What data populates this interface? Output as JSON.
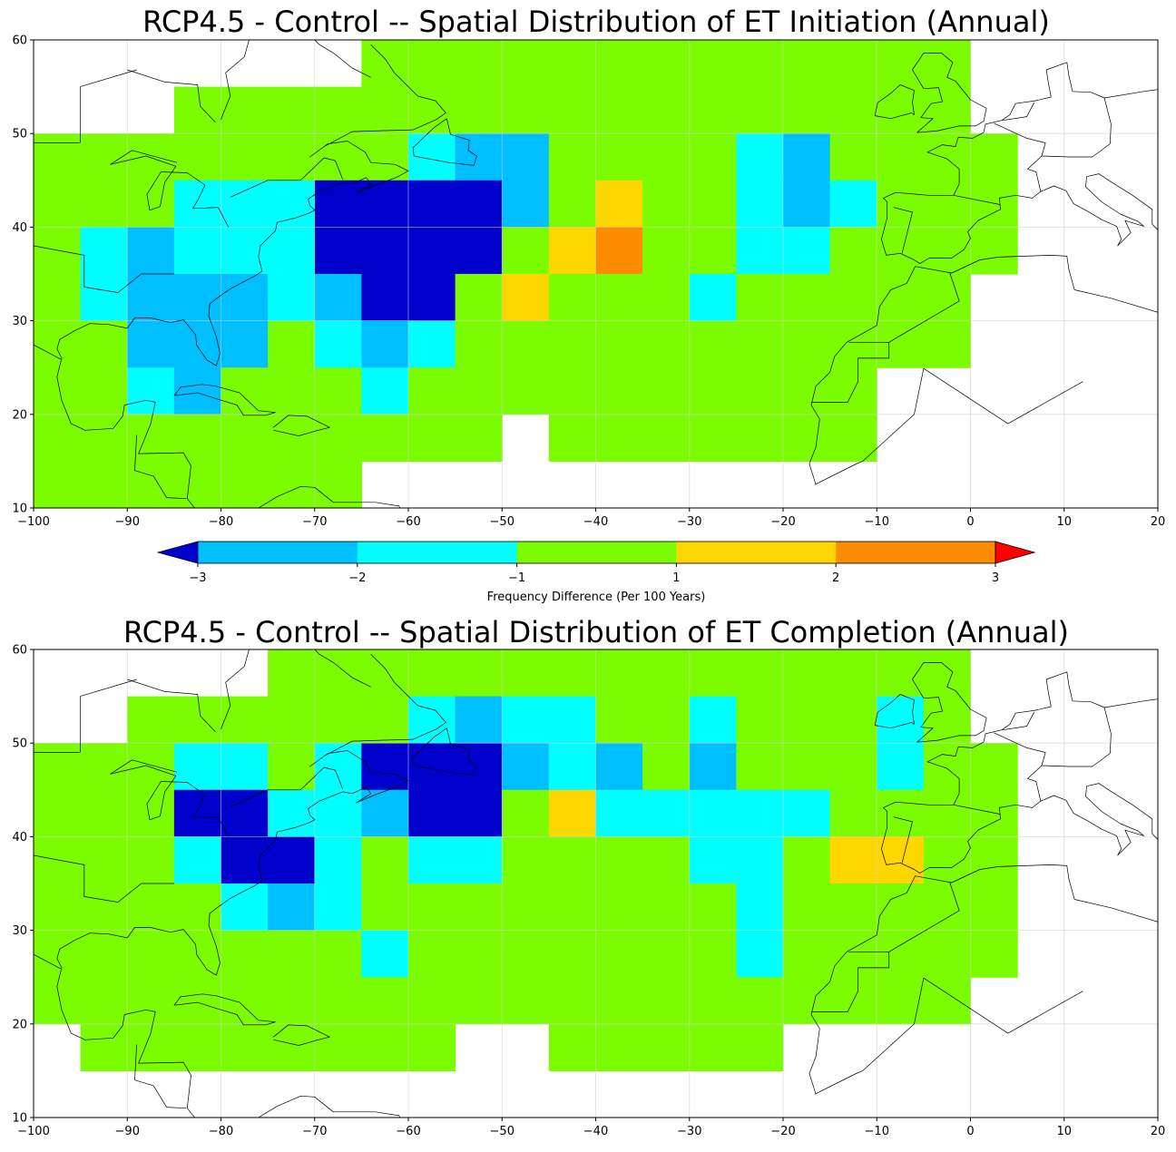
{
  "colors": {
    "bin_lt_-3": "#0000cd",
    "bin_-3_-2": "#00bfff",
    "bin_-2_-1": "#00ffff",
    "bin_-1_1": "#7cfc00",
    "bin_1_2": "#ffd700",
    "bin_2_3": "#ff8c00",
    "bin_gt_3": "#ff0000",
    "land": "#ffffff",
    "coast": "#000000"
  },
  "colorbar": {
    "label": "Frequency Difference (Per 100 Years)",
    "ticks": [
      "−3",
      "−2",
      "−1",
      "1",
      "2",
      "3"
    ],
    "bounds": [
      -3,
      -2,
      -1,
      1,
      2,
      3
    ],
    "extend": "both"
  },
  "chart_data": [
    {
      "type": "heatmap",
      "title": "RCP4.5 - Control -- Spatial Distribution of ET Initiation (Annual)",
      "xlim": [
        -100,
        20
      ],
      "ylim": [
        10,
        60
      ],
      "xticks": [
        "−100",
        "−90",
        "−80",
        "−70",
        "−60",
        "−50",
        "−40",
        "−30",
        "−20",
        "−10",
        "0",
        "10",
        "20"
      ],
      "yticks": [
        "10",
        "20",
        "30",
        "40",
        "50",
        "60"
      ],
      "grid": true,
      "cell_size_deg": 5,
      "grid_origin": {
        "lon": -100,
        "lat_top": 60
      },
      "value_codes": {
        "-3": "< -3",
        "-2": "-3 to -2",
        "-1": "-2 to -1",
        "0": "-1 to 1",
        "1": "1 to 2",
        "2": "2 to 3",
        "3": "> 3"
      },
      "row_lat_ranges": [
        "55-60",
        "50-55",
        "45-50",
        "40-45",
        "35-40",
        "30-35",
        "25-30",
        "20-25",
        "15-20",
        "10-15"
      ],
      "col_lon_start": [
        -100,
        -95,
        -90,
        -85,
        -80,
        -75,
        -70,
        -65,
        -60,
        -55,
        -50,
        -45,
        -40,
        -35,
        -30,
        -25,
        -20,
        -15,
        -10,
        -5,
        0,
        5,
        10,
        15
      ],
      "values": [
        [
          null,
          null,
          null,
          null,
          null,
          null,
          null,
          0,
          0,
          0,
          0,
          0,
          0,
          0,
          0,
          0,
          0,
          0,
          0,
          0,
          null,
          null,
          null,
          null
        ],
        [
          null,
          null,
          null,
          0,
          0,
          0,
          0,
          0,
          0,
          0,
          0,
          0,
          0,
          0,
          0,
          0,
          0,
          0,
          0,
          0,
          null,
          null,
          null,
          null
        ],
        [
          0,
          0,
          0,
          0,
          0,
          0,
          0,
          0,
          -1,
          -2,
          -2,
          0,
          0,
          0,
          0,
          -1,
          -2,
          0,
          0,
          0,
          0,
          null,
          null,
          null
        ],
        [
          0,
          0,
          0,
          -1,
          -1,
          -1,
          -3,
          -3,
          -3,
          -3,
          -2,
          0,
          1,
          0,
          0,
          -1,
          -2,
          -1,
          0,
          0,
          0,
          null,
          null,
          null
        ],
        [
          0,
          -1,
          -2,
          -1,
          -1,
          -1,
          -3,
          -3,
          -3,
          -3,
          0,
          1,
          2,
          0,
          0,
          -1,
          -1,
          0,
          0,
          0,
          0,
          null,
          null,
          null
        ],
        [
          0,
          -1,
          -2,
          -2,
          -2,
          -1,
          -2,
          -3,
          -3,
          0,
          1,
          0,
          0,
          0,
          -1,
          0,
          0,
          0,
          0,
          0,
          null,
          null,
          null,
          null
        ],
        [
          0,
          0,
          -2,
          -2,
          -2,
          0,
          -1,
          -2,
          -1,
          0,
          0,
          0,
          0,
          0,
          0,
          0,
          0,
          0,
          0,
          0,
          null,
          null,
          null,
          null
        ],
        [
          0,
          0,
          -1,
          -2,
          0,
          0,
          0,
          -1,
          0,
          0,
          0,
          0,
          0,
          0,
          0,
          0,
          0,
          0,
          null,
          null,
          null,
          null,
          null,
          null
        ],
        [
          0,
          0,
          0,
          0,
          0,
          0,
          0,
          0,
          0,
          0,
          null,
          0,
          0,
          0,
          0,
          0,
          0,
          0,
          null,
          null,
          null,
          null,
          null,
          null
        ],
        [
          0,
          0,
          0,
          0,
          0,
          0,
          0,
          null,
          null,
          null,
          null,
          null,
          null,
          null,
          null,
          null,
          null,
          null,
          null,
          null,
          null,
          null,
          null,
          null
        ]
      ]
    },
    {
      "type": "heatmap",
      "title": "RCP4.5 - Control -- Spatial Distribution of ET Completion (Annual)",
      "xlim": [
        -100,
        20
      ],
      "ylim": [
        10,
        60
      ],
      "xticks": [
        "−100",
        "−90",
        "−80",
        "−70",
        "−60",
        "−50",
        "−40",
        "−30",
        "−20",
        "−10",
        "0",
        "10",
        "20"
      ],
      "yticks": [
        "10",
        "20",
        "30",
        "40",
        "50",
        "60"
      ],
      "grid": true,
      "cell_size_deg": 5,
      "grid_origin": {
        "lon": -100,
        "lat_top": 60
      },
      "value_codes": {
        "-3": "< -3",
        "-2": "-3 to -2",
        "-1": "-2 to -1",
        "0": "-1 to 1",
        "1": "1 to 2",
        "2": "2 to 3",
        "3": "> 3"
      },
      "row_lat_ranges": [
        "55-60",
        "50-55",
        "45-50",
        "40-45",
        "35-40",
        "30-35",
        "25-30",
        "20-25",
        "15-20",
        "10-15"
      ],
      "col_lon_start": [
        -100,
        -95,
        -90,
        -85,
        -80,
        -75,
        -70,
        -65,
        -60,
        -55,
        -50,
        -45,
        -40,
        -35,
        -30,
        -25,
        -20,
        -15,
        -10,
        -5,
        0,
        5,
        10,
        15
      ],
      "values": [
        [
          null,
          null,
          null,
          null,
          null,
          0,
          0,
          0,
          0,
          0,
          0,
          0,
          0,
          0,
          0,
          0,
          0,
          0,
          0,
          0,
          null,
          null,
          null,
          null
        ],
        [
          null,
          null,
          0,
          0,
          0,
          0,
          0,
          0,
          -1,
          -2,
          -1,
          -1,
          0,
          0,
          -1,
          0,
          0,
          0,
          -1,
          0,
          null,
          null,
          null,
          null
        ],
        [
          0,
          0,
          0,
          -1,
          -1,
          0,
          -1,
          -3,
          -3,
          -3,
          -2,
          -1,
          -2,
          0,
          -2,
          0,
          0,
          0,
          -1,
          0,
          0,
          null,
          null,
          null
        ],
        [
          0,
          0,
          0,
          -3,
          -3,
          -1,
          -1,
          -2,
          -3,
          -3,
          0,
          1,
          -1,
          -1,
          -1,
          -1,
          -1,
          0,
          0,
          0,
          0,
          null,
          null,
          null
        ],
        [
          0,
          0,
          0,
          -1,
          -3,
          -3,
          -1,
          0,
          -1,
          -1,
          0,
          0,
          0,
          0,
          -1,
          -1,
          0,
          1,
          1,
          0,
          0,
          null,
          null,
          null
        ],
        [
          0,
          0,
          0,
          0,
          -1,
          -2,
          -1,
          0,
          0,
          0,
          0,
          0,
          0,
          0,
          0,
          -1,
          0,
          0,
          0,
          0,
          0,
          null,
          null,
          null
        ],
        [
          0,
          0,
          0,
          0,
          0,
          0,
          0,
          -1,
          0,
          0,
          0,
          0,
          0,
          0,
          0,
          -1,
          0,
          0,
          0,
          0,
          0,
          null,
          null,
          null
        ],
        [
          0,
          0,
          0,
          0,
          0,
          0,
          0,
          0,
          0,
          0,
          0,
          0,
          0,
          0,
          0,
          0,
          0,
          0,
          0,
          0,
          null,
          null,
          null,
          null
        ],
        [
          null,
          0,
          0,
          0,
          0,
          0,
          0,
          0,
          0,
          null,
          null,
          0,
          0,
          0,
          0,
          0,
          null,
          null,
          null,
          null,
          null,
          null,
          null,
          null
        ],
        [
          null,
          null,
          null,
          null,
          null,
          null,
          null,
          null,
          null,
          null,
          null,
          null,
          null,
          null,
          null,
          null,
          null,
          null,
          null,
          null,
          null,
          null,
          null,
          null
        ]
      ]
    }
  ]
}
